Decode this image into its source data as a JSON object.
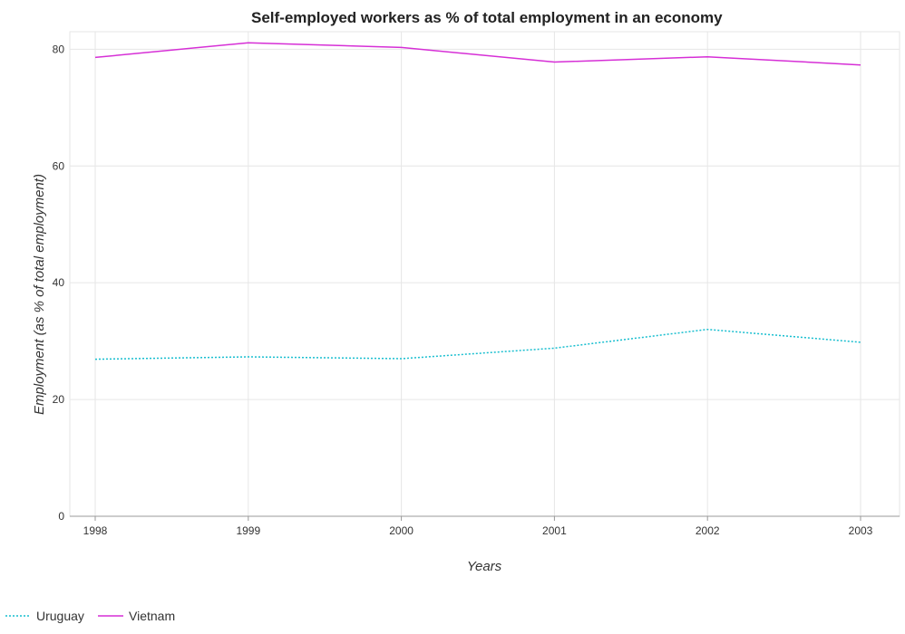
{
  "chart_data": {
    "type": "line",
    "title": "Self-employed workers as % of total employment in an economy",
    "xlabel": "Years",
    "ylabel": "Employment (as % of total employment)",
    "categories": [
      "1998",
      "1999",
      "2000",
      "2001",
      "2002",
      "2003"
    ],
    "ylim": [
      0,
      83
    ],
    "yticks": [
      0,
      20,
      40,
      60,
      80
    ],
    "ytick_labels": [
      "0",
      "20",
      "40",
      "60",
      "80"
    ],
    "grid": true,
    "legend_position": "bottom-left",
    "series": [
      {
        "name": "Uruguay",
        "color": "#17becf",
        "dash": "dotted",
        "values": [
          26.9,
          27.3,
          27.0,
          28.8,
          32.0,
          29.8
        ]
      },
      {
        "name": "Vietnam",
        "color": "#d62fd6",
        "dash": "solid",
        "values": [
          78.6,
          81.1,
          80.3,
          77.8,
          78.7,
          77.3
        ]
      }
    ]
  }
}
